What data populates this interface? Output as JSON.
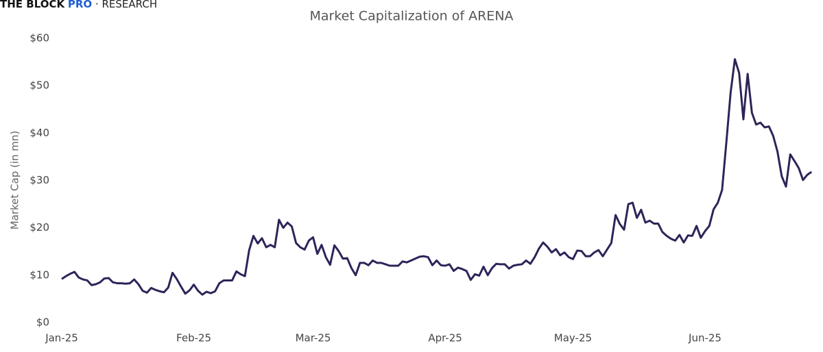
{
  "chart_data": {
    "type": "line",
    "brand_name": "THE BLOCK",
    "brand_tier": "PRO",
    "brand_section": "· RESEARCH",
    "title": "Market Capitalization of ARENA",
    "y_label": "Market Cap (in mn)",
    "color": "#2b2559",
    "ylim": [
      0,
      60
    ],
    "yticks": [
      {
        "value": 0,
        "label": "$0"
      },
      {
        "value": 10,
        "label": "$10"
      },
      {
        "value": 20,
        "label": "$20"
      },
      {
        "value": 30,
        "label": "$30"
      },
      {
        "value": 40,
        "label": "$40"
      },
      {
        "value": 50,
        "label": "$50"
      },
      {
        "value": 60,
        "label": "$60"
      }
    ],
    "categories": [
      "Jan-25",
      null,
      null,
      null,
      null,
      null,
      null,
      null,
      null,
      null,
      null,
      null,
      null,
      null,
      null,
      null,
      null,
      null,
      null,
      null,
      null,
      null,
      null,
      null,
      null,
      null,
      null,
      null,
      null,
      null,
      null,
      "Feb-25",
      null,
      null,
      null,
      null,
      null,
      null,
      null,
      null,
      null,
      null,
      null,
      null,
      null,
      null,
      null,
      null,
      null,
      null,
      null,
      null,
      null,
      null,
      null,
      null,
      null,
      null,
      null,
      "Mar-25",
      null,
      null,
      null,
      null,
      null,
      null,
      null,
      null,
      null,
      null,
      null,
      null,
      null,
      null,
      null,
      null,
      null,
      null,
      null,
      null,
      null,
      null,
      null,
      null,
      null,
      null,
      null,
      null,
      null,
      null,
      "Apr-25",
      null,
      null,
      null,
      null,
      null,
      null,
      null,
      null,
      null,
      null,
      null,
      null,
      null,
      null,
      null,
      null,
      null,
      null,
      null,
      null,
      null,
      null,
      null,
      null,
      null,
      null,
      null,
      null,
      null,
      "May-25",
      null,
      null,
      null,
      null,
      null,
      null,
      null,
      null,
      null,
      null,
      null,
      null,
      null,
      null,
      null,
      null,
      null,
      null,
      null,
      null,
      null,
      null,
      null,
      null,
      null,
      null,
      null,
      null,
      null,
      null,
      "Jun-25",
      null,
      null,
      null,
      null,
      null,
      null,
      null,
      null,
      null,
      null,
      null,
      null,
      null,
      null,
      null,
      null,
      null,
      null,
      null,
      null,
      null,
      null,
      null,
      null,
      null
    ],
    "values": [
      9.2,
      9.8,
      10.3,
      10.7,
      9.5,
      9.1,
      8.9,
      7.9,
      8.1,
      8.5,
      9.3,
      9.4,
      8.5,
      8.3,
      8.3,
      8.2,
      8.3,
      9.1,
      8.1,
      6.7,
      6.3,
      7.3,
      6.9,
      6.6,
      6.4,
      7.4,
      10.5,
      9.2,
      7.6,
      6.1,
      6.8,
      8.0,
      6.7,
      5.9,
      6.5,
      6.2,
      6.6,
      8.3,
      8.9,
      8.9,
      8.9,
      10.8,
      10.2,
      9.8,
      15.3,
      18.3,
      16.7,
      17.8,
      15.9,
      16.4,
      15.9,
      21.7,
      20.0,
      21.1,
      20.3,
      16.8,
      15.9,
      15.4,
      17.3,
      18.0,
      14.5,
      16.4,
      13.8,
      12.2,
      16.3,
      15.1,
      13.5,
      13.6,
      11.5,
      10.0,
      12.6,
      12.6,
      12.1,
      13.1,
      12.6,
      12.6,
      12.3,
      12.0,
      12.0,
      12.0,
      12.9,
      12.7,
      13.1,
      13.5,
      13.9,
      14.0,
      13.8,
      12.1,
      13.1,
      12.1,
      12.0,
      12.3,
      10.9,
      11.6,
      11.3,
      10.9,
      9.0,
      10.2,
      9.9,
      11.8,
      10.0,
      11.5,
      12.4,
      12.3,
      12.3,
      11.4,
      12.0,
      12.2,
      12.3,
      13.1,
      12.4,
      13.8,
      15.6,
      16.9,
      16.0,
      14.8,
      15.5,
      14.2,
      14.8,
      13.8,
      13.4,
      15.2,
      15.1,
      14.0,
      14.0,
      14.8,
      15.3,
      14.0,
      15.4,
      16.8,
      22.7,
      20.8,
      19.6,
      25.0,
      25.3,
      22.1,
      23.8,
      21.1,
      21.5,
      20.9,
      20.9,
      19.1,
      18.3,
      17.7,
      17.3,
      18.5,
      16.9,
      18.4,
      18.3,
      20.4,
      17.9,
      19.3,
      20.4,
      23.9,
      25.3,
      28.0,
      38.0,
      48.5,
      55.6,
      52.7,
      42.9,
      52.5,
      44.3,
      41.8,
      42.2,
      41.2,
      41.4,
      39.4,
      36.1,
      30.9,
      28.7,
      35.5,
      34.1,
      32.6,
      30.1,
      31.2,
      31.8
    ]
  }
}
